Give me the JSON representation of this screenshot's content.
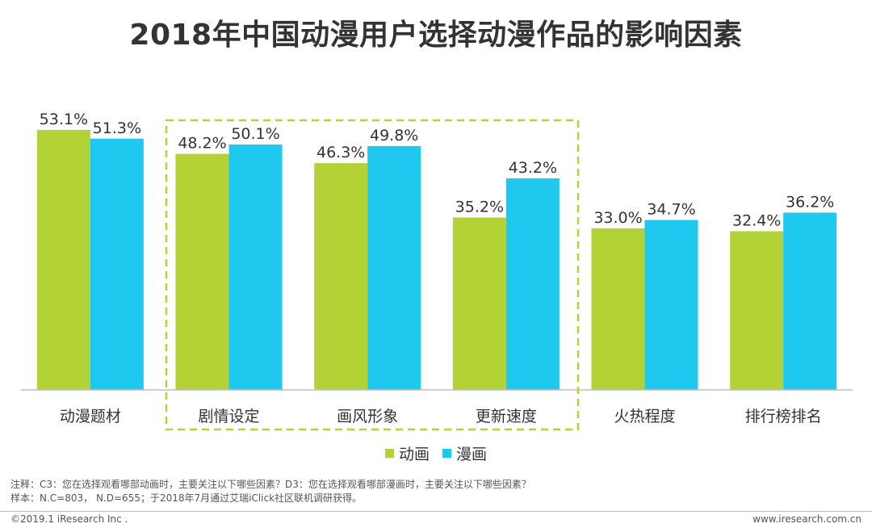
{
  "page": {
    "title": "2018年中国动漫用户选择动漫作品的影响因素",
    "notes": [
      "注释：C3：您在选择观看哪部动画时，主要关注以下哪些因素？D3：您在选择观看哪部漫画时，主要关注以下哪些因素？",
      "样本：N.C=803， N.D=655；于2018年7月通过艾瑞iClick社区联机调研获得。"
    ],
    "copyright": "©2019.1 iResearch Inc .",
    "website": "www.iresearch.com.cn"
  },
  "colors": {
    "animation": "#b2d235",
    "comic": "#1ec8ef",
    "highlight_border": "#b2d235",
    "axis": "#bfbfbf"
  },
  "chart_data": {
    "type": "bar",
    "title": "2018年中国动漫用户选择动漫作品的影响因素",
    "xlabel": "",
    "ylabel": "",
    "ylim": [
      0,
      60
    ],
    "grid": false,
    "legend_position": "bottom-center",
    "value_suffix": "%",
    "categories": [
      "动漫题材",
      "剧情设定",
      "画风形象",
      "更新速度",
      "火热程度",
      "排行榜排名"
    ],
    "series": [
      {
        "name": "动画",
        "values": [
          53.1,
          48.2,
          46.3,
          35.2,
          33.0,
          32.4
        ]
      },
      {
        "name": "漫画",
        "values": [
          51.3,
          50.1,
          49.8,
          43.2,
          34.7,
          36.2
        ]
      }
    ],
    "highlighted_categories": [
      "剧情设定",
      "画风形象",
      "更新速度"
    ]
  }
}
